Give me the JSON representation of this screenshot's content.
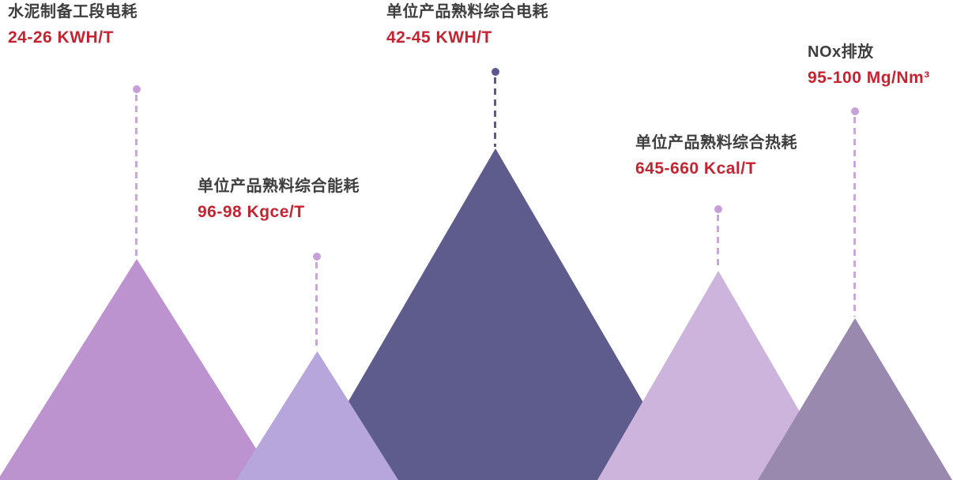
{
  "chart_data": {
    "type": "area",
    "title": "",
    "description": "Five overlapping stylized mountain peaks; each peak has a dashed leader line rising to a dot beneath a metric label with its value range.",
    "legend_position": "none",
    "axes": "none",
    "metrics": [
      {
        "label": "水泥制备工段电耗",
        "value": "24-26 KWH/T",
        "value_min": 24,
        "value_max": 26,
        "unit": "KWH/T",
        "mountain_color": "#bd93cf",
        "marker_color": "#c7a0da"
      },
      {
        "label": "单位产品熟料综合能耗",
        "value": "96-98 Kgce/T",
        "value_min": 96,
        "value_max": 98,
        "unit": "Kgce/T",
        "mountain_color": "#b7a6dc",
        "marker_color": "#c7a0da"
      },
      {
        "label": "单位产品熟料综合电耗",
        "value": "42-45 KWH/T",
        "value_min": 42,
        "value_max": 45,
        "unit": "KWH/T",
        "mountain_color": "#5e5b8d",
        "marker_color": "#5c598c"
      },
      {
        "label": "单位产品熟料综合热耗",
        "value": "645-660 Kcal/T",
        "value_min": 645,
        "value_max": 660,
        "unit": "Kcal/T",
        "mountain_color": "#ccb4dd",
        "marker_color": "#c7a0da"
      },
      {
        "label": "NOx排放",
        "value": "95-100 Mg/Nm³",
        "value_min": 95,
        "value_max": 100,
        "unit": "Mg/Nm³",
        "mountain_color": "#9a89af",
        "marker_color": "#c7a0da"
      }
    ],
    "palette": {
      "background": "#ffffff",
      "title_text": "#3e3e3e",
      "value_text": "#c42431",
      "dashed_line_light": "#c9a6dd",
      "dashed_line_dark": "#5c598c"
    }
  }
}
